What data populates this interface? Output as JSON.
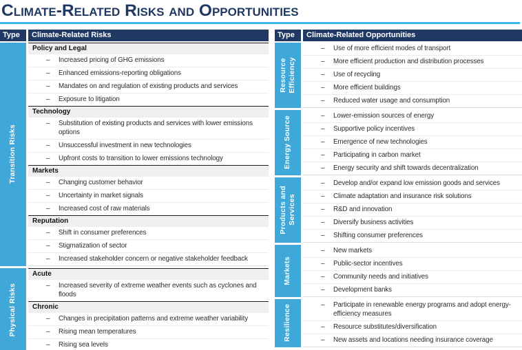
{
  "title": "Climate-Related Risks and Opportunities",
  "bullet": "–",
  "colors": {
    "header_bg": "#1f3864",
    "type_cell_bg": "#3fa8d8",
    "title_underline": "#3ab5e8",
    "section_header_bg": "#efefef",
    "header_text": "#ffffff"
  },
  "risks_table": {
    "type_header": "Type",
    "content_header": "Climate-Related Risks",
    "groups": [
      {
        "type": "Transition Risks",
        "sections": [
          {
            "name": "Policy and Legal",
            "items": [
              "Increased pricing of GHG emissions",
              "Enhanced emissions-reporting obligations",
              "Mandates on and regulation of existing products and services",
              "Exposure to litigation"
            ]
          },
          {
            "name": "Technology",
            "items": [
              "Substitution of existing products and services with lower emissions options",
              "Unsuccessful investment in new technologies",
              "Upfront costs to transition to lower emissions technology"
            ]
          },
          {
            "name": "Markets",
            "items": [
              "Changing customer behavior",
              "Uncertainty in market signals",
              "Increased cost of raw materials"
            ]
          },
          {
            "name": "Reputation",
            "items": [
              "Shift in consumer preferences",
              "Stigmatization of sector",
              "Increased stakeholder concern or negative stakeholder feedback"
            ]
          }
        ]
      },
      {
        "type": "Physical Risks",
        "sections": [
          {
            "name": "Acute",
            "items": [
              "Increased severity of extreme weather events such as cyclones and floods"
            ]
          },
          {
            "name": "Chronic",
            "items": [
              "Changes in precipitation patterns and extreme weather variability",
              "Rising mean temperatures",
              "Rising sea levels"
            ]
          }
        ]
      }
    ]
  },
  "opportunities_table": {
    "type_header": "Type",
    "content_header": "Climate-Related Opportunities",
    "groups": [
      {
        "type": "Resource\nEfficiency",
        "items": [
          "Use of more efficient modes of transport",
          "More efficient production and distribution processes",
          "Use of recycling",
          "More efficient buildings",
          "Reduced water usage and consumption"
        ]
      },
      {
        "type": "Energy Source",
        "items": [
          "Lower-emission sources of energy",
          "Supportive policy incentives",
          "Emergence of new technologies",
          "Participating in carbon market",
          "Energy security and shift towards decentralization"
        ]
      },
      {
        "type": "Products and\nServices",
        "items": [
          "Develop and/or expand low emission goods and services",
          "Climate adaptation and insurance risk solutions",
          "R&D and innovation",
          "Diversify business activities",
          "Shifting consumer preferences"
        ]
      },
      {
        "type": "Markets",
        "items": [
          "New markets",
          "Public-sector incentives",
          "Community needs and initiatives",
          "Development banks"
        ]
      },
      {
        "type": "Resilience",
        "items": [
          "Participate in renewable energy programs and adopt energy-efficiency measures",
          "Resource substitutes/diversification",
          "New assets and locations needing insurance coverage"
        ]
      }
    ]
  }
}
